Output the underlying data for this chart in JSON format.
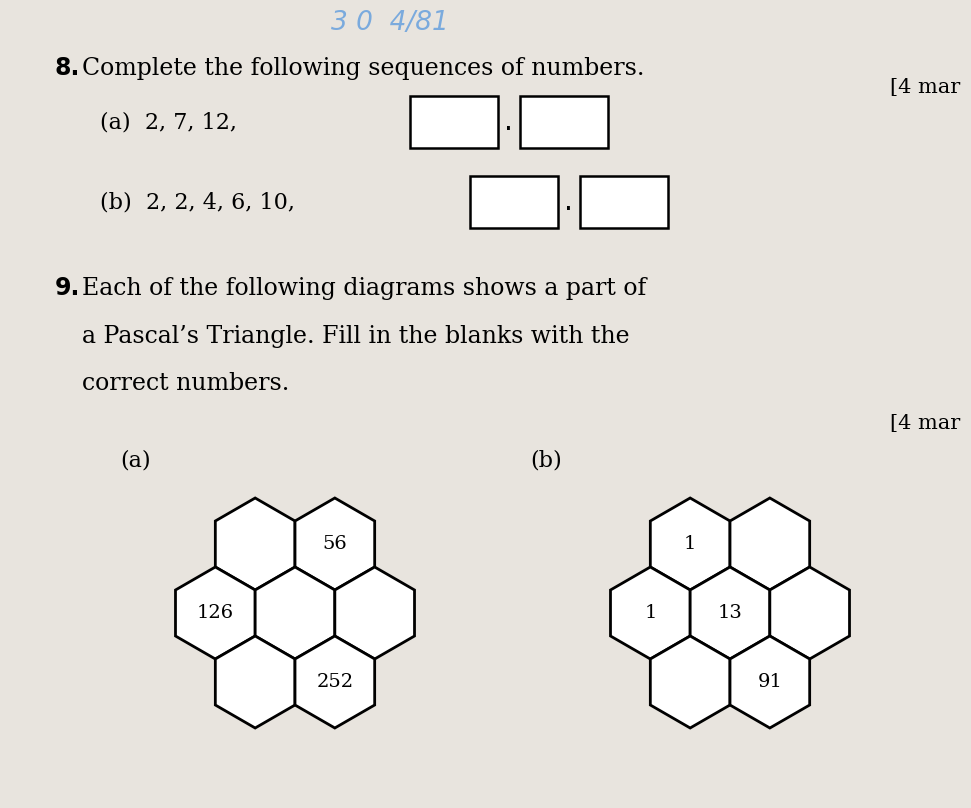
{
  "bg_color": "#e8e4de",
  "title_number": "8.",
  "title_text": "Complete the following sequences of numbers.",
  "marks_8": "[4 mar",
  "seq_a_label": "(a)  2, 7, 12,",
  "seq_b_label": "(b)  2, 2, 4, 6, 10,",
  "q9_number": "9.",
  "q9_line1": "Each of the following diagrams shows a part of",
  "q9_line2": "a Pascal’s Triangle. Fill in the blanks with the",
  "q9_line3": "correct numbers.",
  "marks_9": "[4 mar",
  "qa_label": "(a)",
  "qb_label": "(b)",
  "hex_a_cells": [
    {
      "row": 0,
      "col": 0,
      "label": ""
    },
    {
      "row": 0,
      "col": 1,
      "label": "56"
    },
    {
      "row": 1,
      "col": 0,
      "label": "126"
    },
    {
      "row": 1,
      "col": 1,
      "label": ""
    },
    {
      "row": 1,
      "col": 2,
      "label": ""
    },
    {
      "row": 2,
      "col": 0,
      "label": ""
    },
    {
      "row": 2,
      "col": 1,
      "label": "252"
    }
  ],
  "hex_b_cells": [
    {
      "row": 0,
      "col": 0,
      "label": "1"
    },
    {
      "row": 0,
      "col": 1,
      "label": ""
    },
    {
      "row": 1,
      "col": 0,
      "label": "1"
    },
    {
      "row": 1,
      "col": 1,
      "label": "13"
    },
    {
      "row": 1,
      "col": 2,
      "label": ""
    },
    {
      "row": 2,
      "col": 0,
      "label": ""
    },
    {
      "row": 2,
      "col": 1,
      "label": "91"
    }
  ],
  "header_text": "3 0  4/81",
  "header_color": "#7aaadd",
  "font_size_q": 17,
  "font_size_body": 16,
  "font_size_hex": 14
}
